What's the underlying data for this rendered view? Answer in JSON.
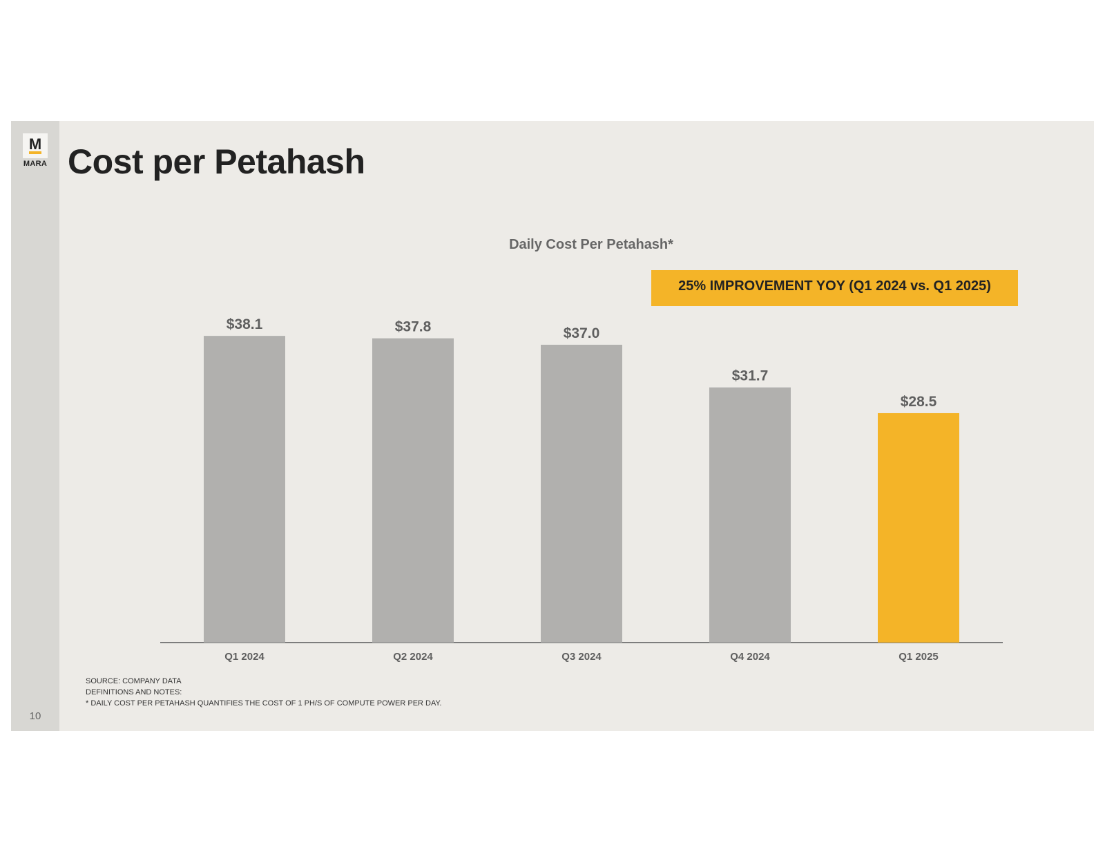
{
  "slide": {
    "title": "Cost per Petahash",
    "page_number": "10",
    "logo": {
      "mark": "M",
      "word": "MARA"
    },
    "callout": "25% IMPROVEMENT YOY (Q1 2024 vs. Q1 2025)",
    "notes": [
      "SOURCE: COMPANY DATA",
      "DEFINITIONS AND NOTES:",
      "* DAILY COST PER PETAHASH QUANTIFIES THE COST OF 1 PH/S OF COMPUTE POWER PER DAY."
    ],
    "colors": {
      "bar": "#b1b0ae",
      "highlight": "#f4b428",
      "accent": "#f4b428"
    }
  },
  "chart_data": {
    "type": "bar",
    "title": "Daily Cost Per Petahash*",
    "categories": [
      "Q1 2024",
      "Q2 2024",
      "Q3 2024",
      "Q4 2024",
      "Q1 2025"
    ],
    "values": [
      38.1,
      37.8,
      37.0,
      31.7,
      28.5
    ],
    "data_labels": [
      "$38.1",
      "$37.8",
      "$37.0",
      "$31.7",
      "$28.5"
    ],
    "highlight_index": 4,
    "ylim": [
      0,
      40
    ],
    "grid": false,
    "legend": "none"
  }
}
